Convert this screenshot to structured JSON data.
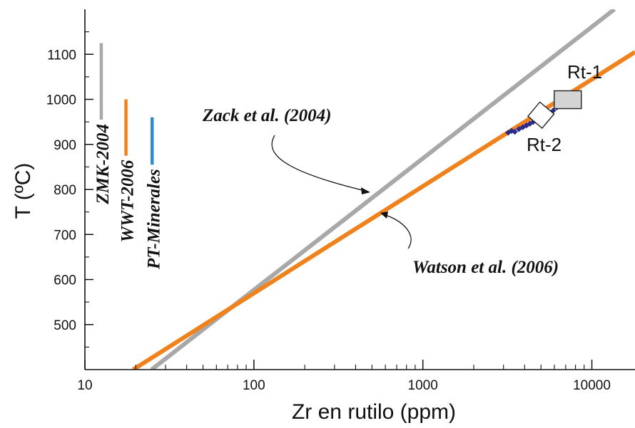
{
  "chart_data": {
    "type": "line",
    "xlabel": "Zr en rutilo (ppm)",
    "ylabel": "T (ºC)",
    "x_scale": "log",
    "xlim": [
      10,
      18000
    ],
    "ylim": [
      400,
      1200
    ],
    "x_ticks": [
      {
        "value": 10,
        "label": "10"
      },
      {
        "value": 100,
        "label": "100"
      },
      {
        "value": 1000,
        "label": "1000"
      },
      {
        "value": 10000,
        "label": "10000"
      }
    ],
    "y_ticks": [
      {
        "value": 500,
        "label": "500"
      },
      {
        "value": 600,
        "label": "600"
      },
      {
        "value": 700,
        "label": "700"
      },
      {
        "value": 800,
        "label": "800"
      },
      {
        "value": 900,
        "label": "900"
      },
      {
        "value": 1000,
        "label": "1000"
      },
      {
        "value": 1100,
        "label": "1100"
      }
    ],
    "grid": false,
    "series": [
      {
        "id": "zack",
        "color": "#a8a8a8",
        "x": [
          24.8,
          13600
        ],
        "y": [
          400,
          1200
        ]
      },
      {
        "id": "watson",
        "color": "#f0821e",
        "x": [
          19.3,
          18000
        ],
        "y": [
          400,
          1105
        ]
      }
    ],
    "ranges": [
      {
        "id": "zmk",
        "label": "ZMK-2004",
        "color": "#a8a8a8",
        "x": 12.5,
        "y": [
          955,
          1125
        ]
      },
      {
        "id": "wwt",
        "label": "WWT-2006",
        "color": "#f0821e",
        "x": 17.5,
        "y": [
          875,
          1000
        ]
      },
      {
        "id": "pt",
        "label": "PT-Minerales",
        "color": "#2a8fd0",
        "x": 25,
        "y": [
          855,
          960
        ]
      }
    ],
    "annotations": [
      {
        "id": "zack",
        "text": "Zack et al. (2004)"
      },
      {
        "id": "watson",
        "text": "Watson et al. (2006)"
      }
    ],
    "samples": [
      {
        "id": "rt1",
        "label": "Rt-1",
        "x": 7200,
        "y": 1000,
        "color": "#d4d4d4"
      },
      {
        "id": "rt2",
        "label": "Rt-2",
        "x": 5000,
        "y": 965,
        "color": "#ffffff"
      }
    ],
    "markers": {
      "color": "#2b2b8c",
      "points": [
        {
          "x": 3200,
          "y": 926
        },
        {
          "x": 3350,
          "y": 930
        },
        {
          "x": 3500,
          "y": 928
        },
        {
          "x": 3700,
          "y": 934
        },
        {
          "x": 3900,
          "y": 938
        },
        {
          "x": 4100,
          "y": 942
        },
        {
          "x": 4300,
          "y": 946
        },
        {
          "x": 4500,
          "y": 950
        },
        {
          "x": 5900,
          "y": 975
        },
        {
          "x": 6200,
          "y": 982
        }
      ]
    }
  }
}
